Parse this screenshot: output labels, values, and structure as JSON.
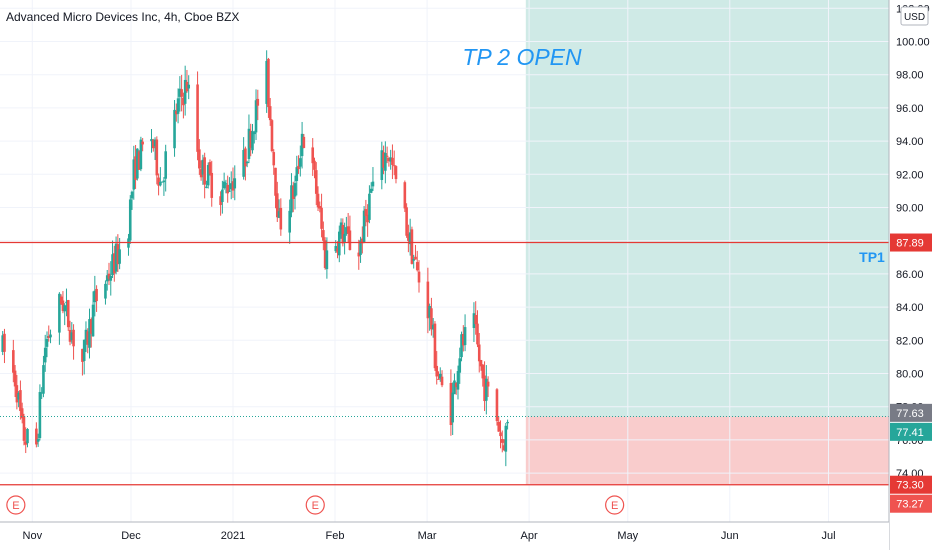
{
  "header": {
    "symbol_title": "Advanced Micro Devices Inc, 4h, Cboe BZX",
    "currency_label": "USD"
  },
  "colors": {
    "up": "#26a69a",
    "down": "#ef5350",
    "target_zone": "#cfeae6",
    "stop_zone": "#f9cccc",
    "level_line": "#e53935",
    "annotation": "#2196f3"
  },
  "chart_data": {
    "type": "candlestick",
    "x_tick_labels": [
      "Nov",
      "Dec",
      "2021",
      "Feb",
      "Mar",
      "Apr",
      "May",
      "Jun",
      "Jul"
    ],
    "y_tick_labels": [
      "74.00",
      "76.00",
      "78.00",
      "80.00",
      "82.00",
      "84.00",
      "86.00",
      "88.00",
      "90.00",
      "92.00",
      "94.00",
      "96.00",
      "98.00",
      "100.00",
      "102.00"
    ],
    "ylim": [
      72.5,
      103
    ],
    "grid": true,
    "price_series_anchors": [
      {
        "date": "2020-10-23",
        "price": 81.5
      },
      {
        "date": "2020-10-27",
        "price": 79.6
      },
      {
        "date": "2020-10-29",
        "price": 76.4
      },
      {
        "date": "2020-11-02",
        "price": 75.2
      },
      {
        "date": "2020-11-05",
        "price": 81.8
      },
      {
        "date": "2020-11-10",
        "price": 84.5
      },
      {
        "date": "2020-11-16",
        "price": 80.5
      },
      {
        "date": "2020-11-20",
        "price": 84.3
      },
      {
        "date": "2020-11-25",
        "price": 86.3
      },
      {
        "date": "2020-11-30",
        "price": 88.6
      },
      {
        "date": "2020-12-02",
        "price": 92.4
      },
      {
        "date": "2020-12-07",
        "price": 94.5
      },
      {
        "date": "2020-12-10",
        "price": 91.5
      },
      {
        "date": "2020-12-15",
        "price": 96.0
      },
      {
        "date": "2020-12-18",
        "price": 97.5
      },
      {
        "date": "2020-12-22",
        "price": 92.5
      },
      {
        "date": "2020-12-28",
        "price": 90.8
      },
      {
        "date": "2021-01-04",
        "price": 92.5
      },
      {
        "date": "2021-01-07",
        "price": 95.0
      },
      {
        "date": "2021-01-11",
        "price": 98.5
      },
      {
        "date": "2021-01-15",
        "price": 89.0
      },
      {
        "date": "2021-01-20",
        "price": 91.2
      },
      {
        "date": "2021-01-22",
        "price": 94.5
      },
      {
        "date": "2021-01-26",
        "price": 91.5
      },
      {
        "date": "2021-01-29",
        "price": 87.0
      },
      {
        "date": "2021-02-03",
        "price": 88.5
      },
      {
        "date": "2021-02-08",
        "price": 87.2
      },
      {
        "date": "2021-02-12",
        "price": 91.0
      },
      {
        "date": "2021-02-17",
        "price": 93.5
      },
      {
        "date": "2021-02-22",
        "price": 89.5
      },
      {
        "date": "2021-02-26",
        "price": 86.0
      },
      {
        "date": "2021-03-02",
        "price": 83.5
      },
      {
        "date": "2021-03-04",
        "price": 80.0
      },
      {
        "date": "2021-03-08",
        "price": 77.5
      },
      {
        "date": "2021-03-11",
        "price": 81.5
      },
      {
        "date": "2021-03-15",
        "price": 83.0
      },
      {
        "date": "2021-03-18",
        "price": 79.5
      },
      {
        "date": "2021-03-22",
        "price": 77.5
      },
      {
        "date": "2021-03-24",
        "price": 75.8
      },
      {
        "date": "2021-03-26",
        "price": 77.4
      }
    ],
    "horizontal_levels": [
      {
        "label": "TP1",
        "price": 87.89
      },
      {
        "label": "",
        "price": 73.3
      }
    ],
    "position_tool": {
      "start_date": "2021-03-31",
      "entry_price": 77.41,
      "target_top": 103,
      "stop_price": 73.3
    },
    "price_badges": [
      {
        "text": "87.89",
        "price": 87.89,
        "color": "#e53935"
      },
      {
        "text": "77.63",
        "price": 77.63,
        "color": "#787b86"
      },
      {
        "text": "77.41",
        "price": 77.41,
        "color": "#26a69a"
      },
      {
        "text": "73.30",
        "price": 73.3,
        "color": "#e53935"
      },
      {
        "text": "73.27",
        "price": 73.27,
        "color": "#ef5350"
      }
    ],
    "annotations": {
      "big_text": "TP 2 OPEN",
      "level_tag": "TP1"
    },
    "earnings_marker_label": "E",
    "earnings_dates": [
      "2020-10-27",
      "2021-01-26",
      "2021-04-27"
    ]
  }
}
